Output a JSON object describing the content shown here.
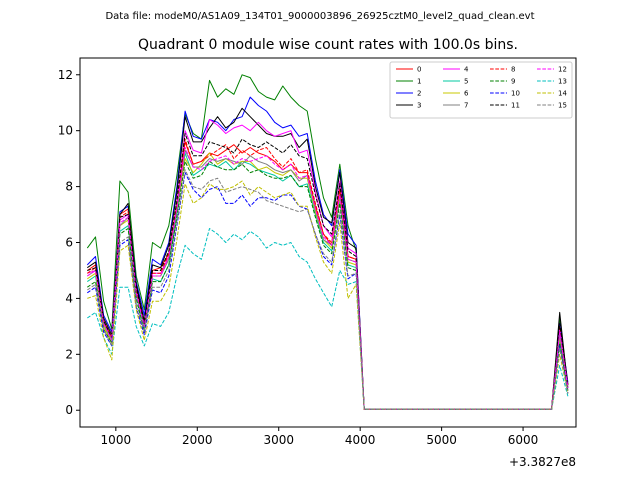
{
  "chart_data": {
    "type": "line",
    "suptitle": "Data file: modeM0/AS1A09_134T01_9000003896_26925cztM0_level2_quad_clean.evt",
    "title": "Quadrant 0 module wise count rates with 100.0s bins.",
    "xlabel": "",
    "ylabel": "",
    "x_offset_label": "+3.3827e8",
    "xlim": [
      560,
      6650
    ],
    "ylim": [
      -0.6,
      12.6
    ],
    "xticks": [
      1000,
      2000,
      3000,
      4000,
      5000,
      6000
    ],
    "yticks": [
      0,
      2,
      4,
      6,
      8,
      10,
      12
    ],
    "grid": false,
    "legend": {
      "placement": "top-right",
      "columns": 4
    },
    "x": [
      650,
      750,
      850,
      950,
      1050,
      1150,
      1250,
      1350,
      1450,
      1550,
      1650,
      1750,
      1850,
      1950,
      2050,
      2150,
      2250,
      2350,
      2450,
      2550,
      2650,
      2750,
      2850,
      2950,
      3050,
      3150,
      3250,
      3350,
      3450,
      3550,
      3650,
      3750,
      3850,
      3950,
      4050,
      4150,
      4250,
      4350,
      4450,
      4550,
      4650,
      4750,
      4850,
      4950,
      5050,
      5150,
      5250,
      5350,
      5450,
      5550,
      5650,
      5750,
      5850,
      5950,
      6050,
      6150,
      6250,
      6350,
      6450,
      6550
    ],
    "series": [
      {
        "name": "0",
        "color": "#ff0000",
        "dash": "solid",
        "values": [
          5.0,
          5.2,
          3.2,
          2.6,
          7.0,
          7.2,
          4.4,
          3.1,
          5.0,
          5.1,
          5.6,
          7.4,
          9.6,
          8.8,
          8.9,
          9.2,
          9.1,
          9.3,
          9.5,
          9.2,
          9.4,
          9.2,
          9.1,
          8.9,
          8.6,
          8.8,
          8.5,
          8.5,
          7.3,
          6.3,
          5.9,
          7.9,
          5.5,
          5.4,
          0.03,
          0.03,
          0.03,
          0.03,
          0.03,
          0.03,
          0.03,
          0.03,
          0.03,
          0.03,
          0.03,
          0.03,
          0.03,
          0.03,
          0.03,
          0.03,
          0.03,
          0.03,
          0.03,
          0.03,
          0.03,
          0.03,
          0.03,
          0.03,
          3.0,
          0.9
        ]
      },
      {
        "name": "1",
        "color": "#008000",
        "dash": "solid",
        "values": [
          5.8,
          6.2,
          3.9,
          2.9,
          8.2,
          7.8,
          4.8,
          3.6,
          6.0,
          5.8,
          6.6,
          8.4,
          10.6,
          9.9,
          9.7,
          11.8,
          11.2,
          11.5,
          11.3,
          12.0,
          11.9,
          11.4,
          11.2,
          11.1,
          11.6,
          11.2,
          10.9,
          10.7,
          9.0,
          7.6,
          6.9,
          8.8,
          6.6,
          5.7,
          0.03,
          0.03,
          0.03,
          0.03,
          0.03,
          0.03,
          0.03,
          0.03,
          0.03,
          0.03,
          0.03,
          0.03,
          0.03,
          0.03,
          0.03,
          0.03,
          0.03,
          0.03,
          0.03,
          0.03,
          0.03,
          0.03,
          0.03,
          0.03,
          3.3,
          0.9
        ]
      },
      {
        "name": "2",
        "color": "#0000ff",
        "dash": "solid",
        "values": [
          5.2,
          5.5,
          3.4,
          2.8,
          7.1,
          7.3,
          4.6,
          3.4,
          5.4,
          5.2,
          6.0,
          8.0,
          10.7,
          9.8,
          9.7,
          10.4,
          10.3,
          10.0,
          10.4,
          10.5,
          11.2,
          10.9,
          10.7,
          10.3,
          10.1,
          10.2,
          9.8,
          9.9,
          8.2,
          7.0,
          6.6,
          8.6,
          6.3,
          5.9,
          0.03,
          0.03,
          0.03,
          0.03,
          0.03,
          0.03,
          0.03,
          0.03,
          0.03,
          0.03,
          0.03,
          0.03,
          0.03,
          0.03,
          0.03,
          0.03,
          0.03,
          0.03,
          0.03,
          0.03,
          0.03,
          0.03,
          0.03,
          0.03,
          3.1,
          1.0
        ]
      },
      {
        "name": "3",
        "color": "#000000",
        "dash": "solid",
        "values": [
          5.1,
          5.3,
          3.3,
          2.7,
          7.0,
          7.4,
          4.5,
          3.2,
          5.2,
          5.1,
          5.9,
          7.8,
          10.5,
          9.6,
          9.6,
          10.1,
          10.5,
          10.1,
          10.3,
          10.8,
          10.5,
          10.2,
          9.9,
          9.8,
          9.8,
          9.9,
          9.4,
          9.7,
          8.0,
          6.9,
          6.7,
          8.5,
          6.0,
          5.8,
          0.03,
          0.03,
          0.03,
          0.03,
          0.03,
          0.03,
          0.03,
          0.03,
          0.03,
          0.03,
          0.03,
          0.03,
          0.03,
          0.03,
          0.03,
          0.03,
          0.03,
          0.03,
          0.03,
          0.03,
          0.03,
          0.03,
          0.03,
          0.03,
          3.5,
          0.8
        ]
      },
      {
        "name": "4",
        "color": "#ff00ff",
        "dash": "solid",
        "values": [
          4.9,
          5.0,
          3.1,
          2.6,
          6.8,
          7.0,
          4.3,
          3.0,
          4.9,
          4.9,
          5.5,
          7.3,
          10.0,
          9.3,
          9.2,
          10.4,
          10.2,
          9.9,
          10.1,
          10.2,
          10.0,
          10.3,
          10.0,
          9.8,
          9.9,
          10.0,
          9.2,
          9.3,
          7.8,
          6.6,
          6.2,
          8.2,
          5.8,
          5.6,
          0.03,
          0.03,
          0.03,
          0.03,
          0.03,
          0.03,
          0.03,
          0.03,
          0.03,
          0.03,
          0.03,
          0.03,
          0.03,
          0.03,
          0.03,
          0.03,
          0.03,
          0.03,
          0.03,
          0.03,
          0.03,
          0.03,
          0.03,
          0.03,
          2.9,
          0.8
        ]
      },
      {
        "name": "5",
        "color": "#00c8a0",
        "dash": "solid",
        "values": [
          4.6,
          4.8,
          3.0,
          2.5,
          6.4,
          6.6,
          4.1,
          2.9,
          4.7,
          4.6,
          5.2,
          7.0,
          9.2,
          8.4,
          8.6,
          8.8,
          8.7,
          8.9,
          8.6,
          8.9,
          8.8,
          8.6,
          8.5,
          8.4,
          8.2,
          8.4,
          8.0,
          8.1,
          7.0,
          6.0,
          5.7,
          7.5,
          5.2,
          5.1,
          0.03,
          0.03,
          0.03,
          0.03,
          0.03,
          0.03,
          0.03,
          0.03,
          0.03,
          0.03,
          0.03,
          0.03,
          0.03,
          0.03,
          0.03,
          0.03,
          0.03,
          0.03,
          0.03,
          0.03,
          0.03,
          0.03,
          0.03,
          0.03,
          2.5,
          0.7
        ]
      },
      {
        "name": "6",
        "color": "#c8c800",
        "dash": "solid",
        "values": [
          4.7,
          4.9,
          3.0,
          2.4,
          6.6,
          6.8,
          4.2,
          3.0,
          4.8,
          4.8,
          5.4,
          7.2,
          9.0,
          8.5,
          8.8,
          9.2,
          8.8,
          9.0,
          8.8,
          8.9,
          8.9,
          8.6,
          8.7,
          8.5,
          8.4,
          8.6,
          8.3,
          8.3,
          7.1,
          6.1,
          5.8,
          7.6,
          5.3,
          5.2,
          0.03,
          0.03,
          0.03,
          0.03,
          0.03,
          0.03,
          0.03,
          0.03,
          0.03,
          0.03,
          0.03,
          0.03,
          0.03,
          0.03,
          0.03,
          0.03,
          0.03,
          0.03,
          0.03,
          0.03,
          0.03,
          0.03,
          0.03,
          0.03,
          2.6,
          0.7
        ]
      },
      {
        "name": "7",
        "color": "#808080",
        "dash": "solid",
        "values": [
          4.8,
          5.0,
          3.1,
          2.5,
          6.6,
          6.9,
          4.2,
          3.0,
          4.8,
          4.8,
          5.4,
          7.2,
          9.3,
          8.7,
          8.7,
          9.0,
          8.9,
          9.0,
          8.9,
          8.8,
          9.1,
          8.9,
          8.8,
          8.6,
          8.5,
          8.6,
          8.2,
          8.4,
          7.2,
          6.1,
          5.9,
          7.7,
          5.4,
          5.3,
          0.03,
          0.03,
          0.03,
          0.03,
          0.03,
          0.03,
          0.03,
          0.03,
          0.03,
          0.03,
          0.03,
          0.03,
          0.03,
          0.03,
          0.03,
          0.03,
          0.03,
          0.03,
          0.03,
          0.03,
          0.03,
          0.03,
          0.03,
          0.03,
          2.7,
          0.7
        ]
      },
      {
        "name": "8",
        "color": "#ff0000",
        "dash": "dashed",
        "values": [
          4.9,
          5.1,
          3.2,
          2.6,
          6.9,
          7.1,
          4.3,
          3.1,
          4.9,
          4.9,
          5.6,
          7.4,
          9.7,
          8.8,
          8.9,
          9.1,
          9.3,
          9.5,
          9.0,
          9.3,
          9.1,
          9.3,
          9.4,
          9.0,
          8.7,
          9.0,
          8.5,
          8.6,
          7.4,
          6.3,
          6.0,
          7.9,
          5.5,
          5.4,
          0.03,
          0.03,
          0.03,
          0.03,
          0.03,
          0.03,
          0.03,
          0.03,
          0.03,
          0.03,
          0.03,
          0.03,
          0.03,
          0.03,
          0.03,
          0.03,
          0.03,
          0.03,
          0.03,
          0.03,
          0.03,
          0.03,
          0.03,
          0.03,
          3.0,
          0.9
        ]
      },
      {
        "name": "9",
        "color": "#008000",
        "dash": "dashed",
        "values": [
          4.4,
          4.6,
          2.9,
          2.4,
          6.3,
          6.5,
          4.0,
          2.8,
          4.6,
          4.6,
          5.2,
          6.9,
          8.9,
          8.3,
          8.4,
          8.9,
          8.7,
          8.6,
          8.6,
          8.8,
          8.5,
          8.6,
          8.4,
          8.3,
          8.3,
          8.4,
          8.0,
          8.0,
          6.9,
          5.9,
          5.6,
          7.4,
          5.1,
          5.0,
          0.03,
          0.03,
          0.03,
          0.03,
          0.03,
          0.03,
          0.03,
          0.03,
          0.03,
          0.03,
          0.03,
          0.03,
          0.03,
          0.03,
          0.03,
          0.03,
          0.03,
          0.03,
          0.03,
          0.03,
          0.03,
          0.03,
          0.03,
          0.03,
          2.4,
          0.7
        ]
      },
      {
        "name": "10",
        "color": "#0000ff",
        "dash": "dashed",
        "values": [
          4.2,
          4.4,
          2.8,
          2.3,
          5.9,
          6.1,
          3.7,
          2.7,
          4.3,
          4.2,
          4.8,
          6.6,
          8.5,
          7.9,
          7.6,
          7.9,
          8.0,
          7.4,
          7.4,
          7.7,
          7.3,
          7.6,
          7.6,
          7.5,
          7.7,
          7.7,
          7.3,
          7.2,
          6.3,
          5.5,
          5.2,
          7.0,
          4.7,
          4.9,
          0.03,
          0.03,
          0.03,
          0.03,
          0.03,
          0.03,
          0.03,
          0.03,
          0.03,
          0.03,
          0.03,
          0.03,
          0.03,
          0.03,
          0.03,
          0.03,
          0.03,
          0.03,
          0.03,
          0.03,
          0.03,
          0.03,
          0.03,
          0.03,
          2.3,
          0.6
        ]
      },
      {
        "name": "11",
        "color": "#000000",
        "dash": "dashed",
        "values": [
          5.0,
          5.1,
          3.2,
          2.6,
          6.9,
          7.0,
          4.4,
          3.1,
          5.0,
          5.0,
          5.7,
          7.5,
          9.9,
          9.1,
          9.1,
          9.6,
          9.5,
          9.4,
          9.2,
          9.7,
          9.5,
          9.4,
          9.6,
          9.4,
          9.2,
          9.5,
          9.1,
          9.0,
          7.7,
          6.6,
          6.3,
          8.1,
          5.7,
          5.5,
          0.03,
          0.03,
          0.03,
          0.03,
          0.03,
          0.03,
          0.03,
          0.03,
          0.03,
          0.03,
          0.03,
          0.03,
          0.03,
          0.03,
          0.03,
          0.03,
          0.03,
          0.03,
          0.03,
          0.03,
          0.03,
          0.03,
          0.03,
          0.03,
          3.1,
          0.9
        ]
      },
      {
        "name": "12",
        "color": "#ff00ff",
        "dash": "dashed",
        "values": [
          4.8,
          5.0,
          3.1,
          2.5,
          6.7,
          6.9,
          4.2,
          3.0,
          4.8,
          4.8,
          5.5,
          7.2,
          9.4,
          8.7,
          8.6,
          8.9,
          9.0,
          9.1,
          8.8,
          9.0,
          8.9,
          9.0,
          9.1,
          8.8,
          8.6,
          8.8,
          8.3,
          8.4,
          7.2,
          6.2,
          5.9,
          7.7,
          5.4,
          5.3,
          0.03,
          0.03,
          0.03,
          0.03,
          0.03,
          0.03,
          0.03,
          0.03,
          0.03,
          0.03,
          0.03,
          0.03,
          0.03,
          0.03,
          0.03,
          0.03,
          0.03,
          0.03,
          0.03,
          0.03,
          0.03,
          0.03,
          0.03,
          0.03,
          2.8,
          0.8
        ]
      },
      {
        "name": "13",
        "color": "#00bfbf",
        "dash": "dashed",
        "values": [
          3.3,
          3.5,
          2.6,
          2.0,
          4.4,
          4.4,
          3.0,
          2.3,
          3.1,
          3.0,
          3.5,
          4.8,
          5.9,
          5.6,
          5.4,
          6.5,
          6.3,
          6.0,
          6.3,
          6.1,
          6.4,
          6.2,
          5.8,
          6.0,
          5.9,
          6.0,
          5.5,
          5.3,
          4.7,
          4.2,
          3.7,
          5.0,
          4.5,
          4.6,
          0.03,
          0.03,
          0.03,
          0.03,
          0.03,
          0.03,
          0.03,
          0.03,
          0.03,
          0.03,
          0.03,
          0.03,
          0.03,
          0.03,
          0.03,
          0.03,
          0.03,
          0.03,
          0.03,
          0.03,
          0.03,
          0.03,
          0.03,
          0.03,
          1.6,
          0.5
        ]
      },
      {
        "name": "14",
        "color": "#bfbf00",
        "dash": "dashed",
        "values": [
          4.0,
          4.1,
          2.6,
          1.8,
          5.7,
          5.9,
          3.6,
          2.5,
          3.9,
          3.9,
          4.4,
          6.1,
          8.1,
          7.4,
          7.6,
          8.1,
          7.9,
          7.9,
          8.0,
          8.2,
          7.7,
          8.0,
          7.8,
          7.6,
          7.7,
          7.8,
          7.3,
          7.3,
          6.2,
          5.3,
          4.9,
          6.7,
          4.0,
          4.5,
          0.03,
          0.03,
          0.03,
          0.03,
          0.03,
          0.03,
          0.03,
          0.03,
          0.03,
          0.03,
          0.03,
          0.03,
          0.03,
          0.03,
          0.03,
          0.03,
          0.03,
          0.03,
          0.03,
          0.03,
          0.03,
          0.03,
          0.03,
          0.03,
          2.0,
          0.6
        ]
      },
      {
        "name": "15",
        "color": "#808080",
        "dash": "dashed",
        "values": [
          4.3,
          4.5,
          2.9,
          2.3,
          6.0,
          6.2,
          3.8,
          2.8,
          4.4,
          4.4,
          5.0,
          6.7,
          8.6,
          8.0,
          7.9,
          8.2,
          8.3,
          7.8,
          7.9,
          8.0,
          7.9,
          7.8,
          7.5,
          7.4,
          7.3,
          7.2,
          7.1,
          7.2,
          6.3,
          5.6,
          5.3,
          7.1,
          4.8,
          4.9,
          0.03,
          0.03,
          0.03,
          0.03,
          0.03,
          0.03,
          0.03,
          0.03,
          0.03,
          0.03,
          0.03,
          0.03,
          0.03,
          0.03,
          0.03,
          0.03,
          0.03,
          0.03,
          0.03,
          0.03,
          0.03,
          0.03,
          0.03,
          0.03,
          2.2,
          0.6
        ]
      }
    ]
  }
}
